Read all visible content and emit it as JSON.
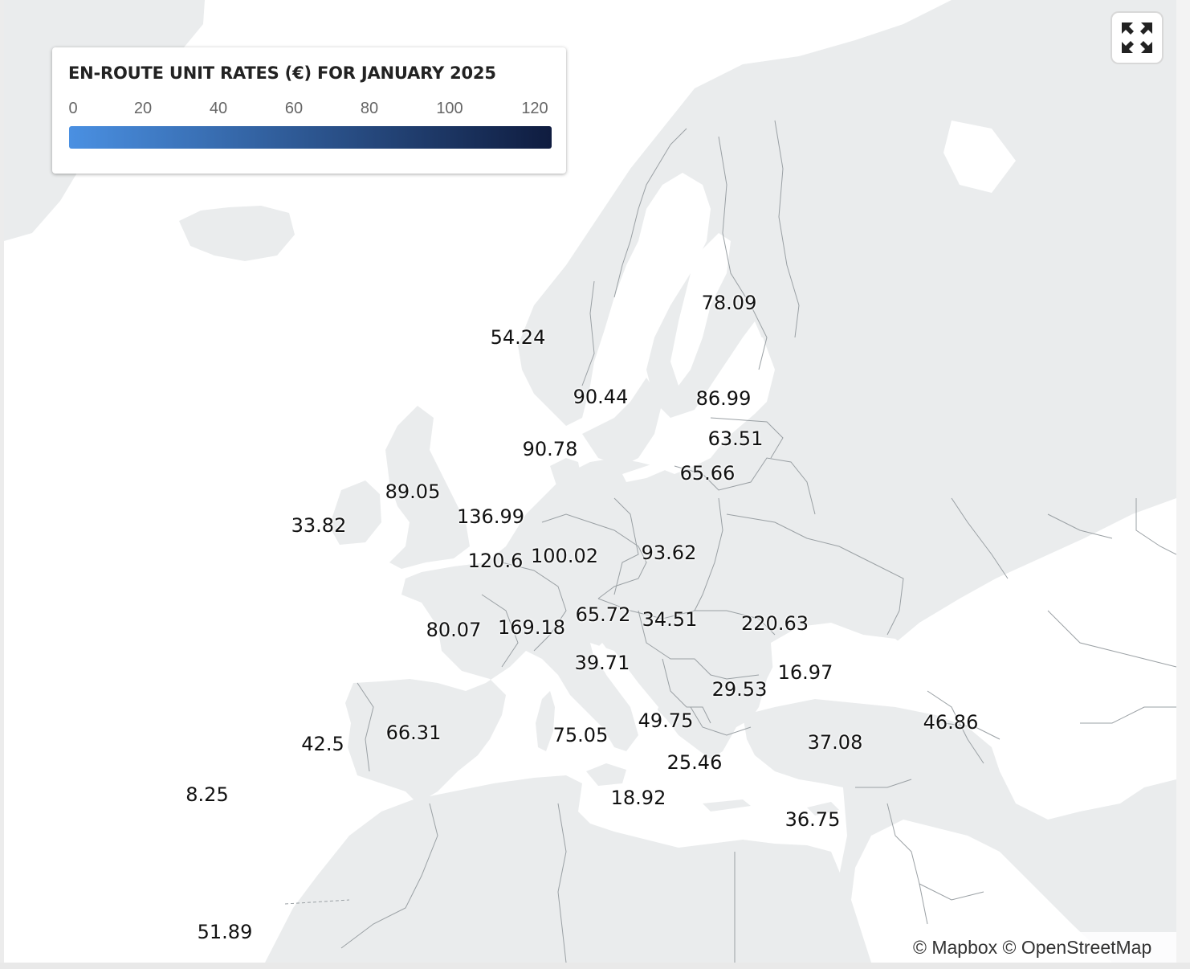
{
  "legend": {
    "title": "EN-ROUTE UNIT RATES (€) FOR JANUARY 2025",
    "ticks": [
      "0",
      "20",
      "40",
      "60",
      "80",
      "100",
      "120"
    ],
    "gradient_start": "#4a90e2",
    "gradient_end": "#0f1c3f"
  },
  "controls": {
    "fullscreen_icon": "fullscreen-expand-icon"
  },
  "attribution": "© Mapbox © OpenStreetMap",
  "colors": {
    "land": "#eaeced",
    "water": "#ffffff",
    "border": "#9aa0a4"
  },
  "rates": [
    "78.09",
    "54.24",
    "90.44",
    "86.99",
    "63.51",
    "90.78",
    "65.66",
    "89.05",
    "136.99",
    "33.82",
    "120.6",
    "100.02",
    "93.62",
    "65.72",
    "34.51",
    "220.63",
    "80.07",
    "169.18",
    "39.71",
    "16.97",
    "29.53",
    "49.75",
    "46.86",
    "42.5",
    "66.31",
    "75.05",
    "37.08",
    "25.46",
    "8.25",
    "18.92",
    "36.75",
    "51.89"
  ]
}
